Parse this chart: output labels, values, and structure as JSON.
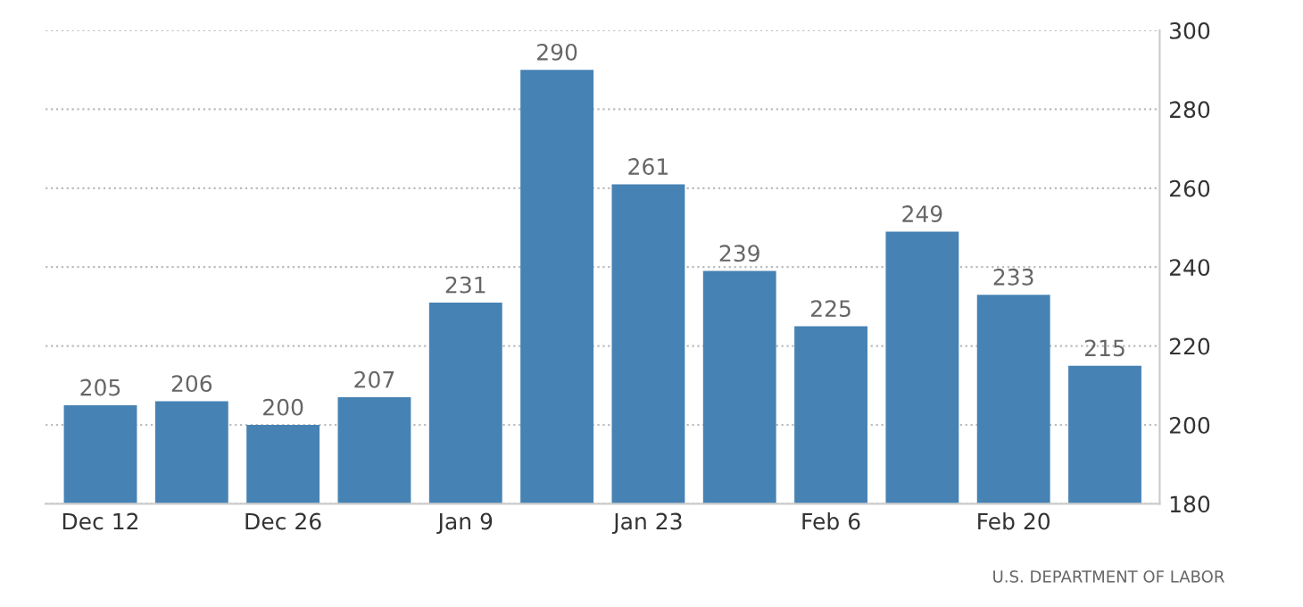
{
  "chart_data": {
    "type": "bar",
    "categories": [
      "Dec 12",
      null,
      "Dec 26",
      null,
      "Jan 9",
      null,
      "Jan 23",
      null,
      "Feb 6",
      null,
      "Feb 20",
      null
    ],
    "values": [
      205,
      206,
      200,
      207,
      231,
      290,
      261,
      239,
      225,
      249,
      233,
      215
    ],
    "color": "#4682b4",
    "ylim": [
      180,
      300
    ],
    "yticks": [
      180,
      200,
      220,
      240,
      260,
      280,
      300
    ],
    "grid": "y",
    "data_labels": true,
    "annotations": [
      "U.S. DEPARTMENT OF LABOR"
    ]
  }
}
